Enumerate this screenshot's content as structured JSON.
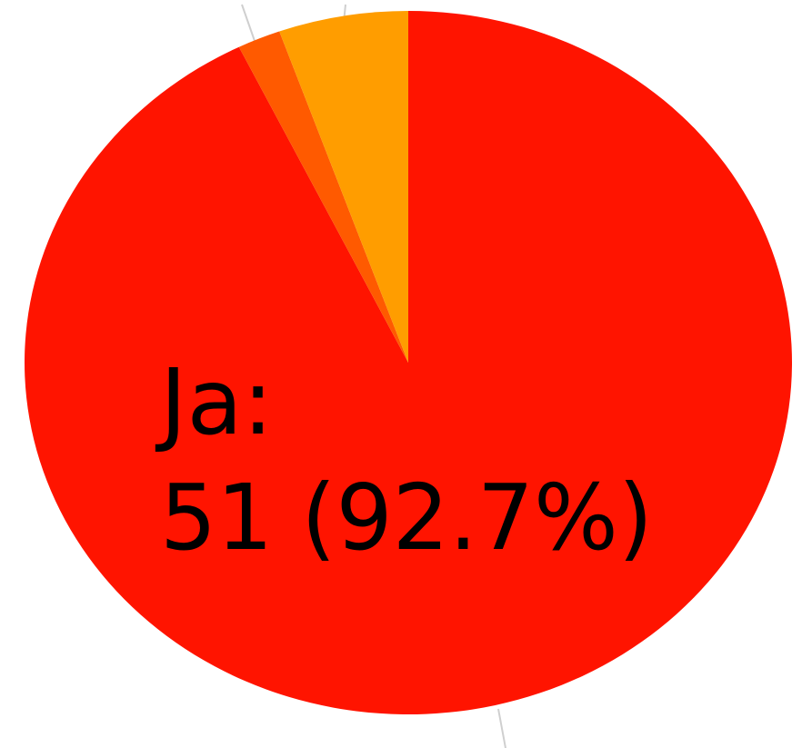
{
  "chart_data": {
    "type": "pie",
    "categories": [
      "Ja:",
      null,
      null
    ],
    "values": [
      51,
      1,
      3
    ],
    "value_labels": [
      "51 (92.7%)",
      null,
      null
    ],
    "colors": [
      "#ff1400",
      "#ff5a00",
      "#ff9d00"
    ]
  }
}
